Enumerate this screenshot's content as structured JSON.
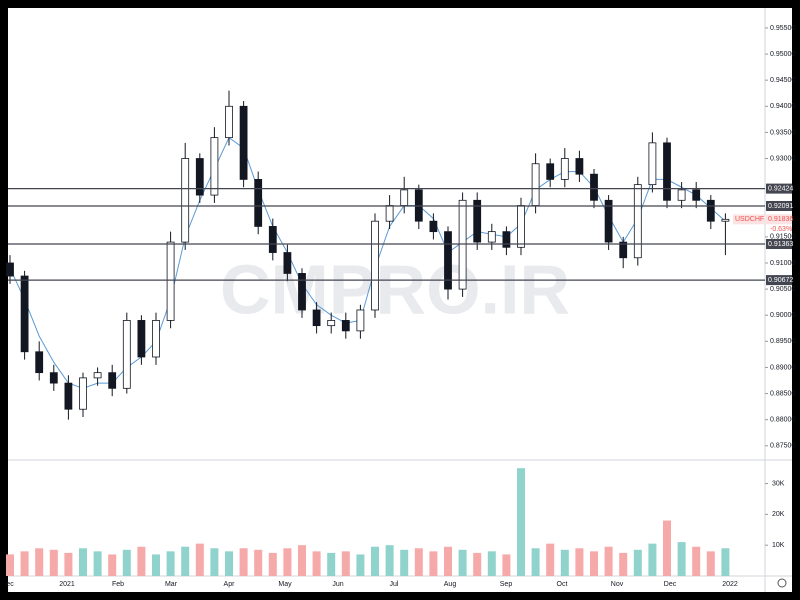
{
  "chart_data": {
    "type": "candlestick",
    "symbol": "USDCHF",
    "change": "-0.63%",
    "watermark": "CMPRO.IR",
    "last_price": 0.91836,
    "open": [
      0.91,
      0.9075,
      0.893,
      0.889,
      0.887,
      0.882,
      0.888,
      0.889,
      0.886,
      0.899,
      0.892,
      0.899,
      0.914,
      0.93,
      0.923,
      0.934,
      0.94,
      0.926,
      0.917,
      0.912,
      0.908,
      0.901,
      0.898,
      0.899,
      0.897,
      0.901,
      0.918,
      0.921,
      0.924,
      0.918,
      0.916,
      0.905,
      0.922,
      0.914,
      0.916,
      0.913,
      0.921,
      0.929,
      0.926,
      0.93,
      0.927,
      0.922,
      0.914,
      0.911,
      0.925,
      0.933,
      0.922,
      0.924,
      0.922,
      0.918
    ],
    "high": [
      0.9115,
      0.9085,
      0.895,
      0.8905,
      0.8885,
      0.889,
      0.89,
      0.8905,
      0.9005,
      0.9,
      0.9005,
      0.916,
      0.933,
      0.931,
      0.936,
      0.943,
      0.941,
      0.9275,
      0.9185,
      0.9135,
      0.909,
      0.9025,
      0.9005,
      0.9005,
      0.902,
      0.9195,
      0.923,
      0.9265,
      0.925,
      0.9195,
      0.917,
      0.9235,
      0.9235,
      0.9175,
      0.917,
      0.9225,
      0.931,
      0.93,
      0.932,
      0.9315,
      0.928,
      0.923,
      0.915,
      0.9265,
      0.935,
      0.934,
      0.9255,
      0.9255,
      0.923,
      0.9195
    ],
    "low": [
      0.906,
      0.8915,
      0.8875,
      0.8855,
      0.88,
      0.8805,
      0.8865,
      0.8845,
      0.885,
      0.8905,
      0.8905,
      0.8975,
      0.9125,
      0.9215,
      0.9215,
      0.9325,
      0.9245,
      0.9155,
      0.9105,
      0.9065,
      0.8995,
      0.8965,
      0.8965,
      0.8955,
      0.8955,
      0.8995,
      0.9165,
      0.9195,
      0.9165,
      0.9145,
      0.903,
      0.9035,
      0.9125,
      0.9125,
      0.9115,
      0.9115,
      0.9195,
      0.9245,
      0.9245,
      0.9255,
      0.9205,
      0.9125,
      0.909,
      0.9095,
      0.9235,
      0.9205,
      0.9205,
      0.9205,
      0.9165,
      0.9115
    ],
    "close": [
      0.9075,
      0.893,
      0.889,
      0.887,
      0.882,
      0.888,
      0.889,
      0.886,
      0.899,
      0.892,
      0.899,
      0.914,
      0.93,
      0.923,
      0.934,
      0.94,
      0.926,
      0.917,
      0.912,
      0.908,
      0.901,
      0.898,
      0.899,
      0.897,
      0.901,
      0.918,
      0.921,
      0.924,
      0.918,
      0.916,
      0.905,
      0.922,
      0.914,
      0.916,
      0.913,
      0.921,
      0.929,
      0.926,
      0.93,
      0.927,
      0.922,
      0.914,
      0.911,
      0.925,
      0.933,
      0.922,
      0.924,
      0.922,
      0.918,
      0.91836
    ],
    "ma": [
      0.909,
      0.903,
      0.896,
      0.891,
      0.887,
      0.886,
      0.887,
      0.887,
      0.89,
      0.892,
      0.895,
      0.903,
      0.915,
      0.922,
      0.928,
      0.934,
      0.932,
      0.924,
      0.917,
      0.912,
      0.906,
      0.902,
      0.9,
      0.8985,
      0.899,
      0.909,
      0.917,
      0.921,
      0.921,
      0.9185,
      0.912,
      0.914,
      0.916,
      0.9155,
      0.915,
      0.9175,
      0.924,
      0.926,
      0.9275,
      0.9275,
      0.9245,
      0.919,
      0.914,
      0.9185,
      0.926,
      0.926,
      0.9245,
      0.923,
      0.9205,
      0.918
    ],
    "volume": [
      7000,
      8000,
      9000,
      8500,
      7500,
      9000,
      8000,
      7000,
      8500,
      9500,
      7000,
      8000,
      9500,
      10500,
      9000,
      8000,
      9000,
      8500,
      7500,
      9000,
      10000,
      8000,
      7500,
      8000,
      7000,
      9500,
      10000,
      8500,
      9000,
      8000,
      9500,
      8500,
      7500,
      8000,
      7000,
      35000,
      9000,
      10500,
      8500,
      9000,
      8000,
      9500,
      7500,
      8500,
      10500,
      18000,
      11000,
      9500,
      8000,
      9000
    ],
    "ylim": [
      0.87266,
      0.95882
    ],
    "yticks": [
      {
        "value": 0.955,
        "label": "0.95500"
      },
      {
        "value": 0.95,
        "label": "0.95000"
      },
      {
        "value": 0.945,
        "label": "0.94500"
      },
      {
        "value": 0.94,
        "label": "0.94000"
      },
      {
        "value": 0.935,
        "label": "0.93500"
      },
      {
        "value": 0.93,
        "label": "0.93000"
      },
      {
        "value": 0.915,
        "label": "0.91500"
      },
      {
        "value": 0.91,
        "label": "0.91000"
      },
      {
        "value": 0.905,
        "label": "0.90500"
      },
      {
        "value": 0.9,
        "label": "0.90000"
      },
      {
        "value": 0.895,
        "label": "0.89500"
      },
      {
        "value": 0.89,
        "label": "0.89000"
      },
      {
        "value": 0.885,
        "label": "0.88500"
      },
      {
        "value": 0.88,
        "label": "0.88000"
      },
      {
        "value": 0.875,
        "label": "0.87500"
      }
    ],
    "levels": [
      0.92424,
      0.92091,
      0.91363,
      0.90672
    ],
    "vlim": [
      0,
      37000
    ],
    "vticks": [
      {
        "value": 10000,
        "label": "10K"
      },
      {
        "value": 20000,
        "label": "20K"
      },
      {
        "value": 30000,
        "label": "30K"
      }
    ],
    "time_labels": [
      "ec",
      "2021",
      "Feb",
      "Mar",
      "Apr",
      "May",
      "Jun",
      "Jul",
      "Aug",
      "Sep",
      "Oct",
      "Nov",
      "Dec",
      "2022"
    ],
    "colors": {
      "up": "#ffffff",
      "down": "#131722",
      "ma": "#5b9bd5",
      "vol_up": "#8fd3cc",
      "vol_down": "#f5a9a8",
      "level": "#434651"
    }
  }
}
